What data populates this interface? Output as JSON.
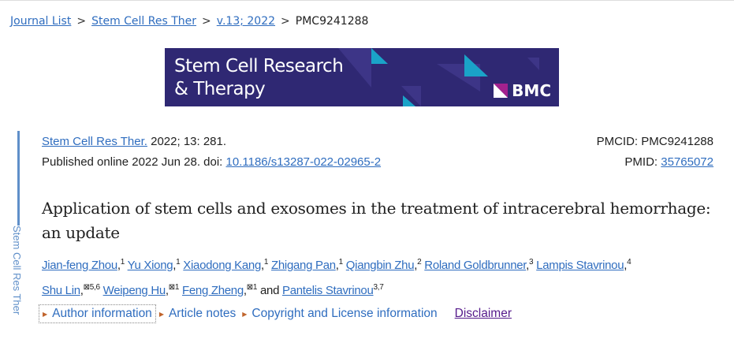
{
  "breadcrumb": [
    "Journal List",
    "Stem Cell Res Ther",
    "v.13; 2022",
    "PMC9241288"
  ],
  "banner": {
    "line1": "Stem Cell Research",
    "line2": "& Therapy",
    "publisher": "BMC",
    "bg": "#2f2873",
    "accent": "#1aa3c8"
  },
  "sidebar": {
    "label": "Stem Cell Res Ther"
  },
  "citation": {
    "journal": "Stem Cell Res Ther.",
    "details": " 2022; 13: 281.",
    "published": "Published online 2022 Jun 28. doi: ",
    "doi": "10.1186/s13287-022-02965-2",
    "pmcid": "PMCID: PMC9241288",
    "pmid_label": "PMID: ",
    "pmid": "35765072"
  },
  "title": "Application of stem cells and exosomes in the treatment of intracerebral hemorrhage: an update",
  "authors": [
    {
      "name": "Jian-feng Zhou",
      "sup": "1"
    },
    {
      "name": "Yu Xiong",
      "sup": "1"
    },
    {
      "name": "Xiaodong Kang",
      "sup": "1"
    },
    {
      "name": "Zhigang Pan",
      "sup": "1"
    },
    {
      "name": "Qiangbin Zhu",
      "sup": "2"
    },
    {
      "name": "Roland Goldbrunner",
      "sup": "3"
    },
    {
      "name": "Lampis Stavrinou",
      "sup": "4"
    },
    {
      "name": "Shu Lin",
      "sup": "⊠5,6"
    },
    {
      "name": "Weipeng Hu",
      "sup": "⊠1"
    },
    {
      "name": "Feng Zheng",
      "sup": "⊠1"
    },
    {
      "name": "Pantelis Stavrinou",
      "sup": "3,7"
    }
  ],
  "and": "and",
  "info": {
    "author_info": "Author information",
    "article_notes": "Article notes",
    "copyright": "Copyright and License information",
    "disclaimer": "Disclaimer"
  }
}
